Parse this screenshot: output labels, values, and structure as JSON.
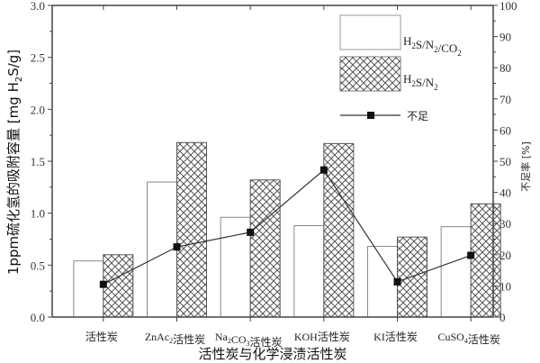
{
  "chart_data": {
    "type": "bar",
    "xlabel": "活性炭与化学浸渍活性炭",
    "ylabel": "1ppm硫化氢的吸附容量 [mg H₂S/g]",
    "ylabel_parts": {
      "pre": "1ppm硫化氢的吸附容量 [mg H",
      "sub": "2",
      "post": "S/g]"
    },
    "y2label": "不足率 [%]",
    "ylim": [
      0,
      3.0
    ],
    "y2lim": [
      0,
      100
    ],
    "yticks": [
      "0.0",
      "0.5",
      "1.0",
      "1.5",
      "2.0",
      "2.5",
      "3.0"
    ],
    "y2ticks": [
      "0",
      "10",
      "20",
      "30",
      "40",
      "50",
      "60",
      "70",
      "80",
      "90",
      "100"
    ],
    "categories": [
      {
        "pre": "活性炭",
        "sub": "",
        "post": ""
      },
      {
        "pre": "ZnAc",
        "sub": "2",
        "post": "活性炭"
      },
      {
        "pre": "Na",
        "sub": "2",
        "mid": "CO",
        "sub2": "3",
        "post": "活性炭"
      },
      {
        "pre": "KOH活性炭",
        "sub": "",
        "post": ""
      },
      {
        "pre": "KI活性炭",
        "sub": "",
        "post": ""
      },
      {
        "pre": "CuSO",
        "sub": "4",
        "post": "活性炭"
      }
    ],
    "series": [
      {
        "name": "H2S/N2/CO2",
        "label": {
          "a": "H",
          "s1": "2",
          "b": "S/N",
          "s2": "2",
          "c": "/CO",
          "s3": "2"
        },
        "type": "bar",
        "style": "white",
        "axis": "left",
        "values": [
          0.54,
          1.3,
          0.96,
          0.88,
          0.68,
          0.87
        ]
      },
      {
        "name": "H2S/N2",
        "label": {
          "a": "H",
          "s1": "2",
          "b": "S/N",
          "s2": "2",
          "c": "",
          "s3": ""
        },
        "type": "bar",
        "style": "crosshatch",
        "axis": "left",
        "values": [
          0.6,
          1.68,
          1.32,
          1.67,
          0.77,
          1.09
        ]
      },
      {
        "name": "不足",
        "type": "line",
        "marker": "square",
        "axis": "right",
        "values": [
          10.5,
          22.5,
          27.2,
          47.2,
          11.3,
          19.8
        ]
      }
    ],
    "legend_position": "top-right",
    "grid": false
  }
}
